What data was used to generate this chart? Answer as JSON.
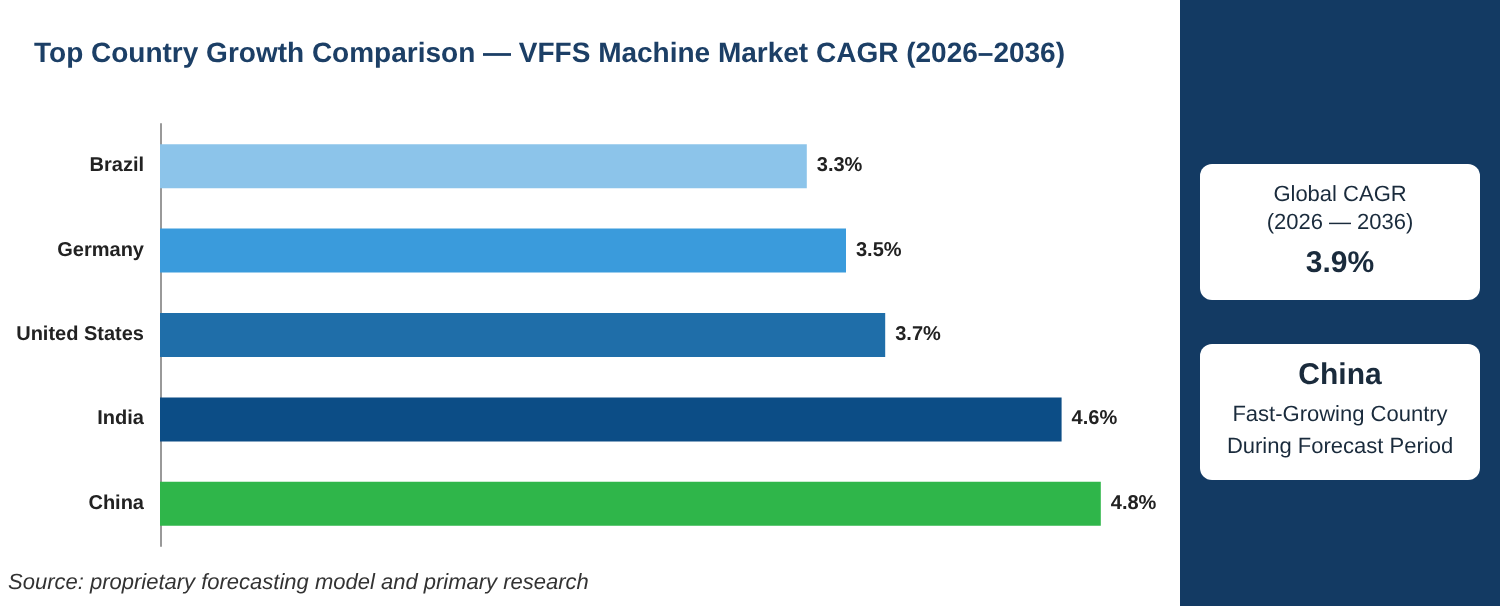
{
  "chart_data": {
    "type": "bar",
    "orientation": "horizontal",
    "title": "Top Country Growth Comparison — VFFS Machine Market CAGR (2026–2036)",
    "categories": [
      "Brazil",
      "Germany",
      "United States",
      "India",
      "China"
    ],
    "values": [
      3.3,
      3.5,
      3.7,
      4.6,
      4.8
    ],
    "colors": [
      "#8cc4ea",
      "#3a9bdc",
      "#1f6ea9",
      "#0c4d86",
      "#2fb64a"
    ],
    "value_labels": [
      "3.3%",
      "3.5%",
      "3.7%",
      "4.6%",
      "4.8%"
    ],
    "annotations": [
      "Source: proprietary forecasting model and primary research",
      "Global CAGR",
      "(2026 — 2036)",
      "3.9%",
      "China",
      "Fast-Growing Country",
      "During Forecast Period"
    ]
  }
}
